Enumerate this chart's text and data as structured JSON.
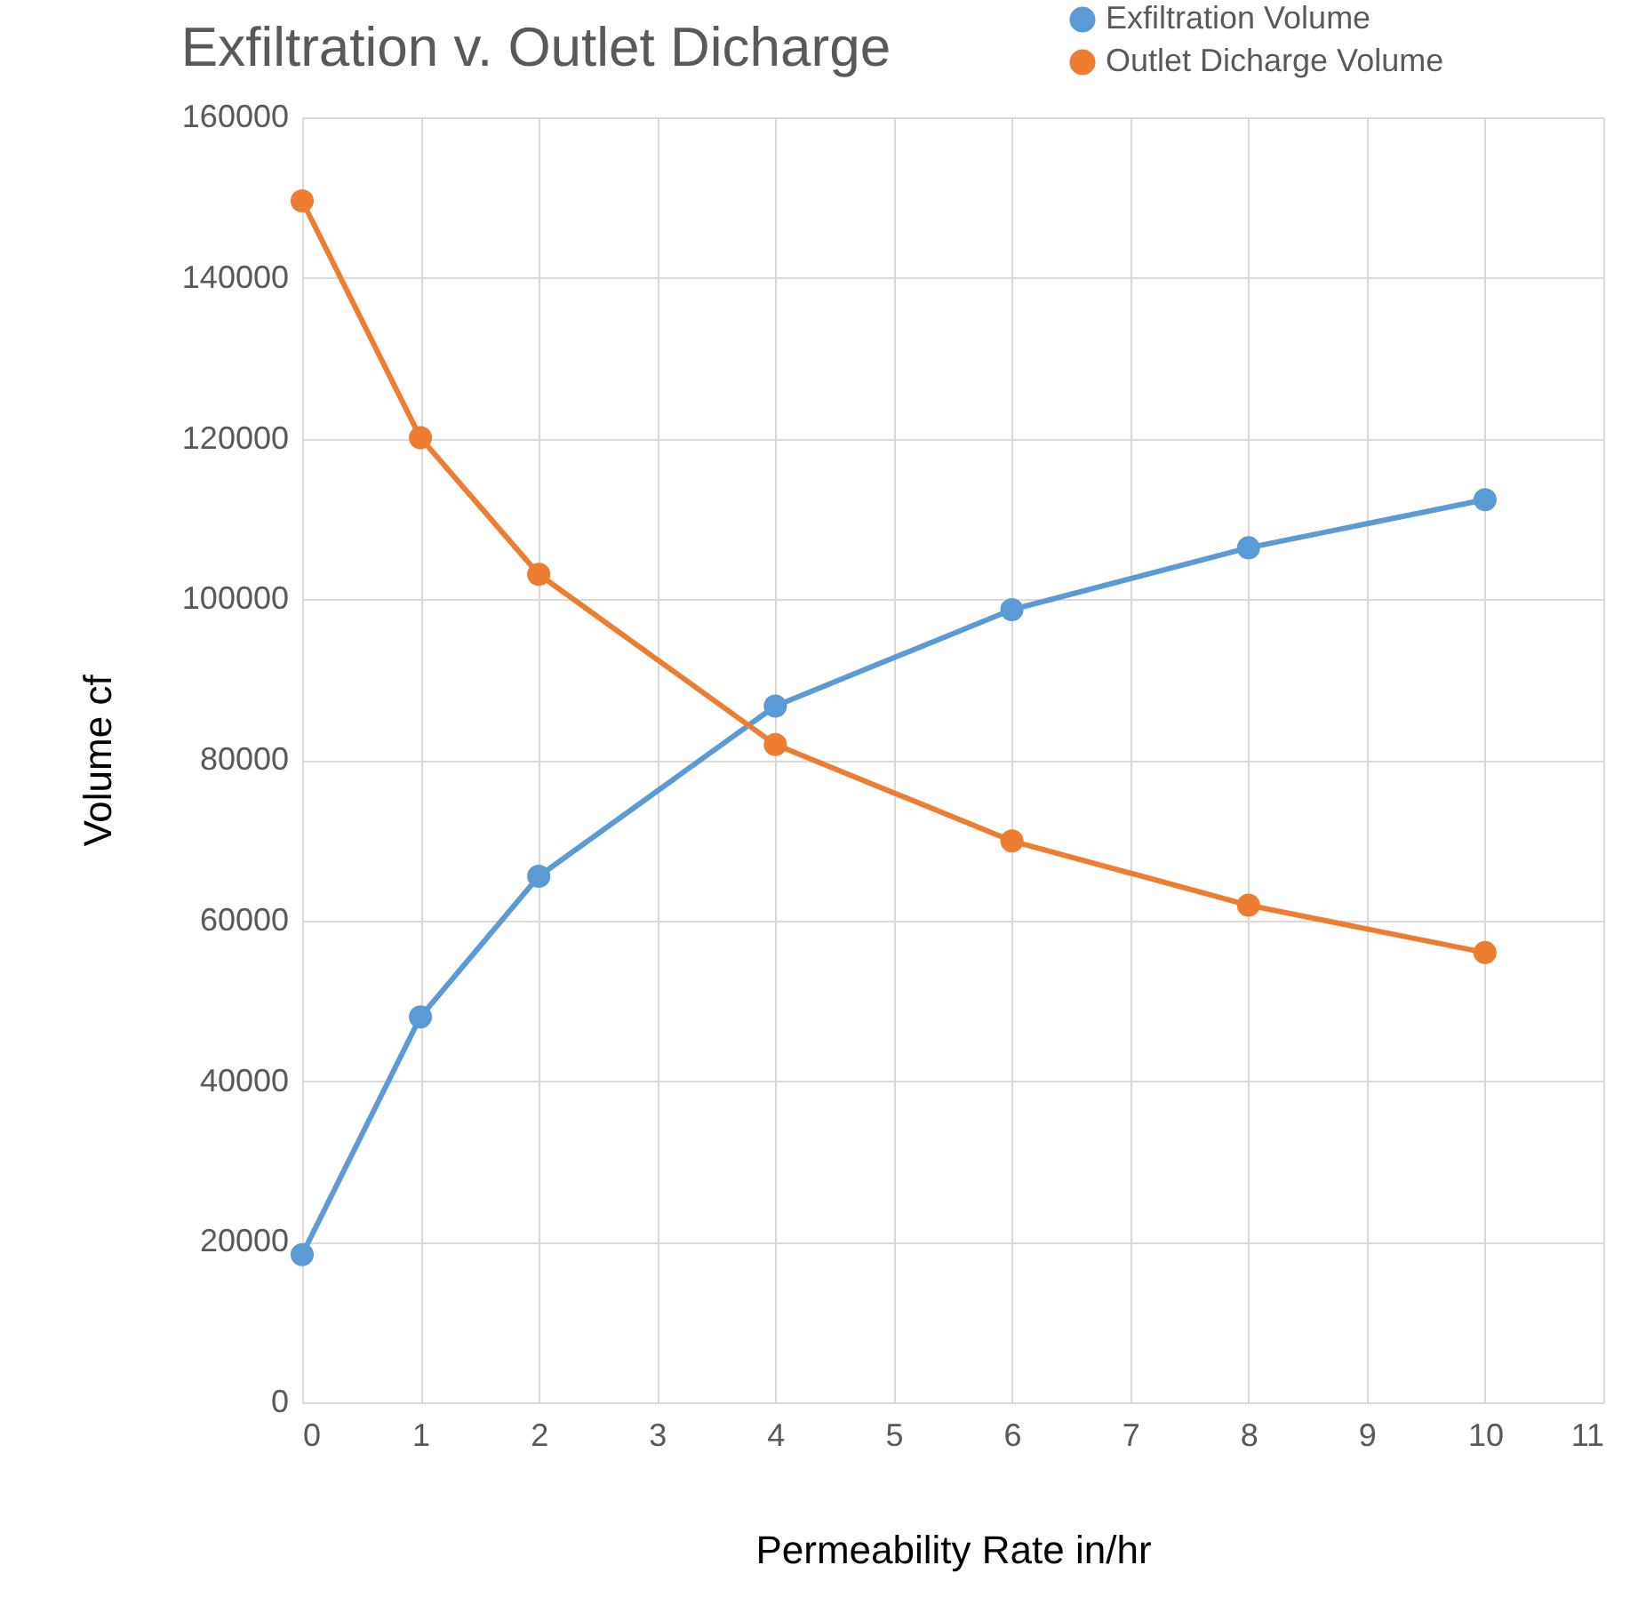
{
  "chart_data": {
    "type": "line",
    "title": "Exfiltration v. Outlet Dicharge",
    "xlabel": "Permeability Rate in/hr",
    "ylabel": "Volume cf",
    "x": [
      0,
      1,
      2,
      4,
      6,
      8,
      10
    ],
    "series": [
      {
        "name": "Exfiltration Volume",
        "color": "#5b9bd5",
        "values": [
          18400,
          48000,
          65500,
          86700,
          98700,
          106400,
          112400
        ]
      },
      {
        "name": "Outlet Dicharge Volume",
        "color": "#ed7d31",
        "values": [
          149600,
          120100,
          103100,
          81900,
          69900,
          61900,
          56000
        ]
      }
    ],
    "xlim": [
      0,
      11
    ],
    "xticks": [
      0,
      1,
      2,
      3,
      4,
      5,
      6,
      7,
      8,
      9,
      10,
      11
    ],
    "ylim": [
      0,
      160000
    ],
    "yticks": [
      0,
      20000,
      40000,
      60000,
      80000,
      100000,
      120000,
      140000,
      160000
    ],
    "grid": true,
    "legend": "top right",
    "marker": "circle"
  }
}
